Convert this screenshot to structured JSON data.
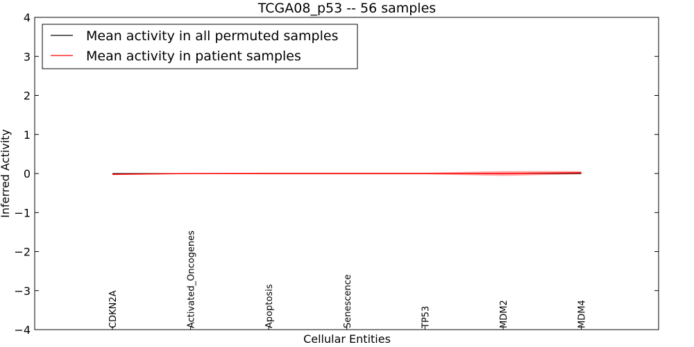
{
  "chart_data": {
    "type": "line",
    "title": "TCGA08_p53 -- 56 samples",
    "xlabel": "Cellular Entities",
    "ylabel": "Inferred Activity",
    "ylim": [
      -4,
      4
    ],
    "yticks": [
      4,
      3,
      2,
      1,
      0,
      -1,
      -2,
      -3,
      -4
    ],
    "ytick_labels": [
      "4",
      "3",
      "2",
      "1",
      "0",
      "−1",
      "−2",
      "−3",
      "−4"
    ],
    "categories": [
      "CDKN2A",
      "Activated_Oncogenes",
      "Apoptosis",
      "Senescence",
      "TP53",
      "MDM2",
      "MDM4"
    ],
    "series": [
      {
        "name": "Mean activity in all permuted samples",
        "color": "#000000",
        "values": [
          0.0,
          0.0,
          0.0,
          0.0,
          0.0,
          0.0,
          0.0
        ],
        "spread": [
          0.01,
          0.01,
          0.01,
          0.01,
          0.01,
          0.01,
          0.01
        ],
        "band_color": "#b0c4de"
      },
      {
        "name": "Mean activity in patient samples",
        "color": "#ff0000",
        "values": [
          -0.02,
          0.0,
          0.0,
          0.0,
          0.0,
          0.0,
          0.02
        ],
        "spread": [
          0.02,
          0.01,
          0.02,
          0.02,
          0.02,
          0.06,
          0.04
        ],
        "band_color": "#ff0000"
      }
    ],
    "legend": {
      "location": "top-left",
      "entries": [
        "Mean activity in all permuted samples",
        "Mean activity in patient samples"
      ]
    },
    "grid": false
  }
}
